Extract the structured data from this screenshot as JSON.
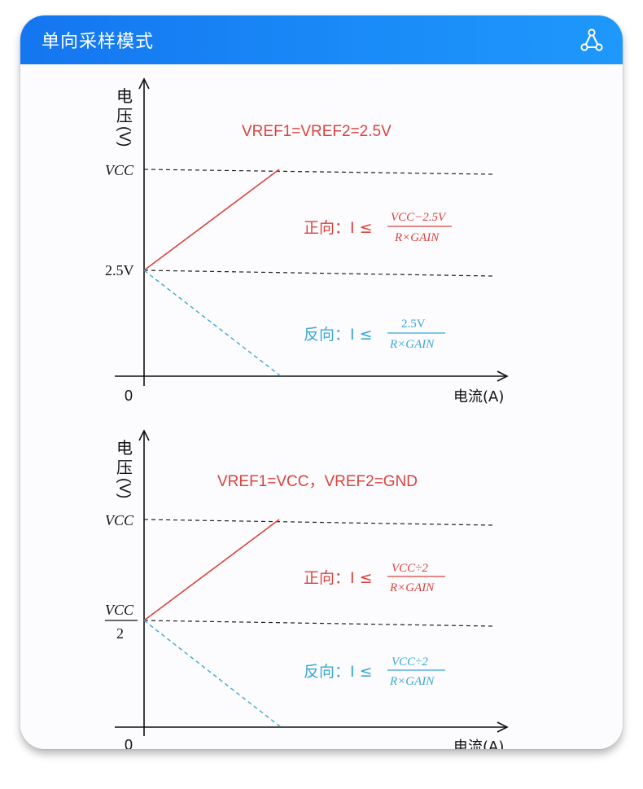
{
  "header": {
    "title": "单向采样模式",
    "icon": "triangle-nodes-icon"
  },
  "diagrams": [
    {
      "y_axis_label_1": "电",
      "y_axis_label_2": "压",
      "y_axis_label_3": "(V)",
      "x_axis_label": "电流(A)",
      "origin_label": "0",
      "vcc_label": "VCC",
      "mid_label": "2.5V",
      "mid_label_top": "",
      "mid_label_bottom": "",
      "condition": "VREF1=VREF2=2.5V",
      "forward_prefix": "正向：I ≤",
      "forward_numerator": "VCC−2.5V",
      "forward_denominator": "R×GAIN",
      "reverse_prefix": "反向：I ≤",
      "reverse_numerator": "2.5V",
      "reverse_denominator": "R×GAIN",
      "colors": {
        "forward": "#d9443f",
        "reverse": "#3aa8d6"
      }
    },
    {
      "y_axis_label_1": "电",
      "y_axis_label_2": "压",
      "y_axis_label_3": "(V)",
      "x_axis_label": "电流(A)",
      "origin_label": "0",
      "vcc_label": "VCC",
      "mid_label": "",
      "mid_label_top": "VCC",
      "mid_label_bottom": "2",
      "condition": "VREF1=VCC，VREF2=GND",
      "forward_prefix": "正向：I ≤",
      "forward_numerator": "VCC÷2",
      "forward_denominator": "R×GAIN",
      "reverse_prefix": "反向：I ≤",
      "reverse_numerator": "VCC÷2",
      "reverse_denominator": "R×GAIN",
      "colors": {
        "forward": "#d9443f",
        "reverse": "#3aa8d6"
      }
    }
  ]
}
